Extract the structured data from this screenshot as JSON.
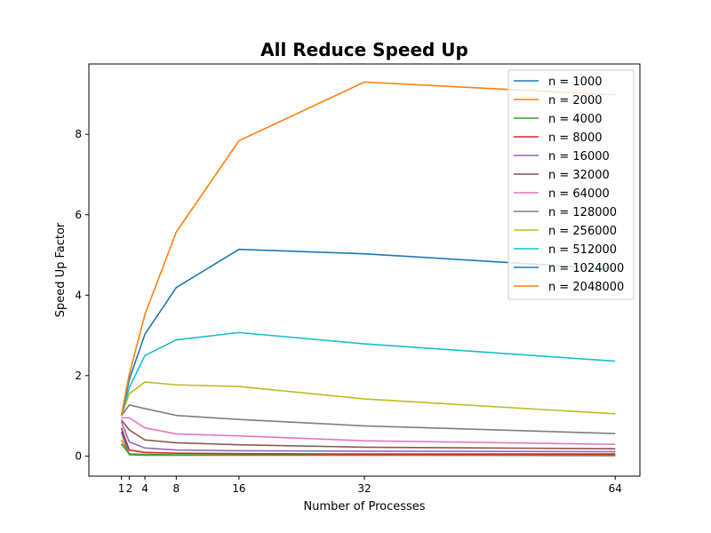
{
  "chart_data": {
    "type": "line",
    "title": "All Reduce Speed Up",
    "xlabel": "Number of Processes",
    "ylabel": "Speed Up Factor",
    "x": [
      1,
      2,
      4,
      8,
      16,
      32,
      64
    ],
    "xticks": [
      1,
      2,
      4,
      8,
      16,
      32,
      64
    ],
    "yticks": [
      0,
      2,
      4,
      6,
      8
    ],
    "xlim": [
      -3.15,
      67.15
    ],
    "ylim": [
      -0.5,
      9.75
    ],
    "grid": false,
    "legend_position": "upper right",
    "series": [
      {
        "name": "n = 1000",
        "color": "#1f77b4",
        "values": [
          0.6,
          0.03,
          0.02,
          0.02,
          0.02,
          0.02,
          0.01
        ]
      },
      {
        "name": "n = 2000",
        "color": "#ff7f0e",
        "values": [
          0.4,
          0.04,
          0.03,
          0.02,
          0.02,
          0.02,
          0.02
        ]
      },
      {
        "name": "n = 4000",
        "color": "#2ca02c",
        "values": [
          0.3,
          0.05,
          0.04,
          0.03,
          0.03,
          0.03,
          0.03
        ]
      },
      {
        "name": "n = 8000",
        "color": "#d62728",
        "values": [
          0.7,
          0.15,
          0.09,
          0.07,
          0.06,
          0.05,
          0.05
        ]
      },
      {
        "name": "n = 16000",
        "color": "#9467bd",
        "values": [
          0.85,
          0.35,
          0.2,
          0.15,
          0.13,
          0.12,
          0.11
        ]
      },
      {
        "name": "n = 32000",
        "color": "#8c564b",
        "values": [
          0.9,
          0.65,
          0.4,
          0.33,
          0.28,
          0.22,
          0.18
        ]
      },
      {
        "name": "n = 64000",
        "color": "#e377c2",
        "values": [
          0.95,
          0.95,
          0.7,
          0.55,
          0.5,
          0.38,
          0.29
        ]
      },
      {
        "name": "n = 128000",
        "color": "#7f7f7f",
        "values": [
          1.0,
          1.27,
          1.18,
          1.01,
          0.91,
          0.75,
          0.56
        ]
      },
      {
        "name": "n = 256000",
        "color": "#bcbd22",
        "values": [
          1.0,
          1.55,
          1.84,
          1.77,
          1.73,
          1.42,
          1.05
        ]
      },
      {
        "name": "n = 512000",
        "color": "#17becf",
        "values": [
          1.0,
          1.7,
          2.5,
          2.89,
          3.07,
          2.79,
          2.36
        ]
      },
      {
        "name": "n = 1024000",
        "color": "#1f77b4",
        "values": [
          1.0,
          1.9,
          3.03,
          4.19,
          5.14,
          5.03,
          4.65
        ]
      },
      {
        "name": "n = 2048000",
        "color": "#ff7f0e",
        "values": [
          1.0,
          2.03,
          3.52,
          5.57,
          7.84,
          9.3,
          8.98
        ]
      }
    ]
  }
}
